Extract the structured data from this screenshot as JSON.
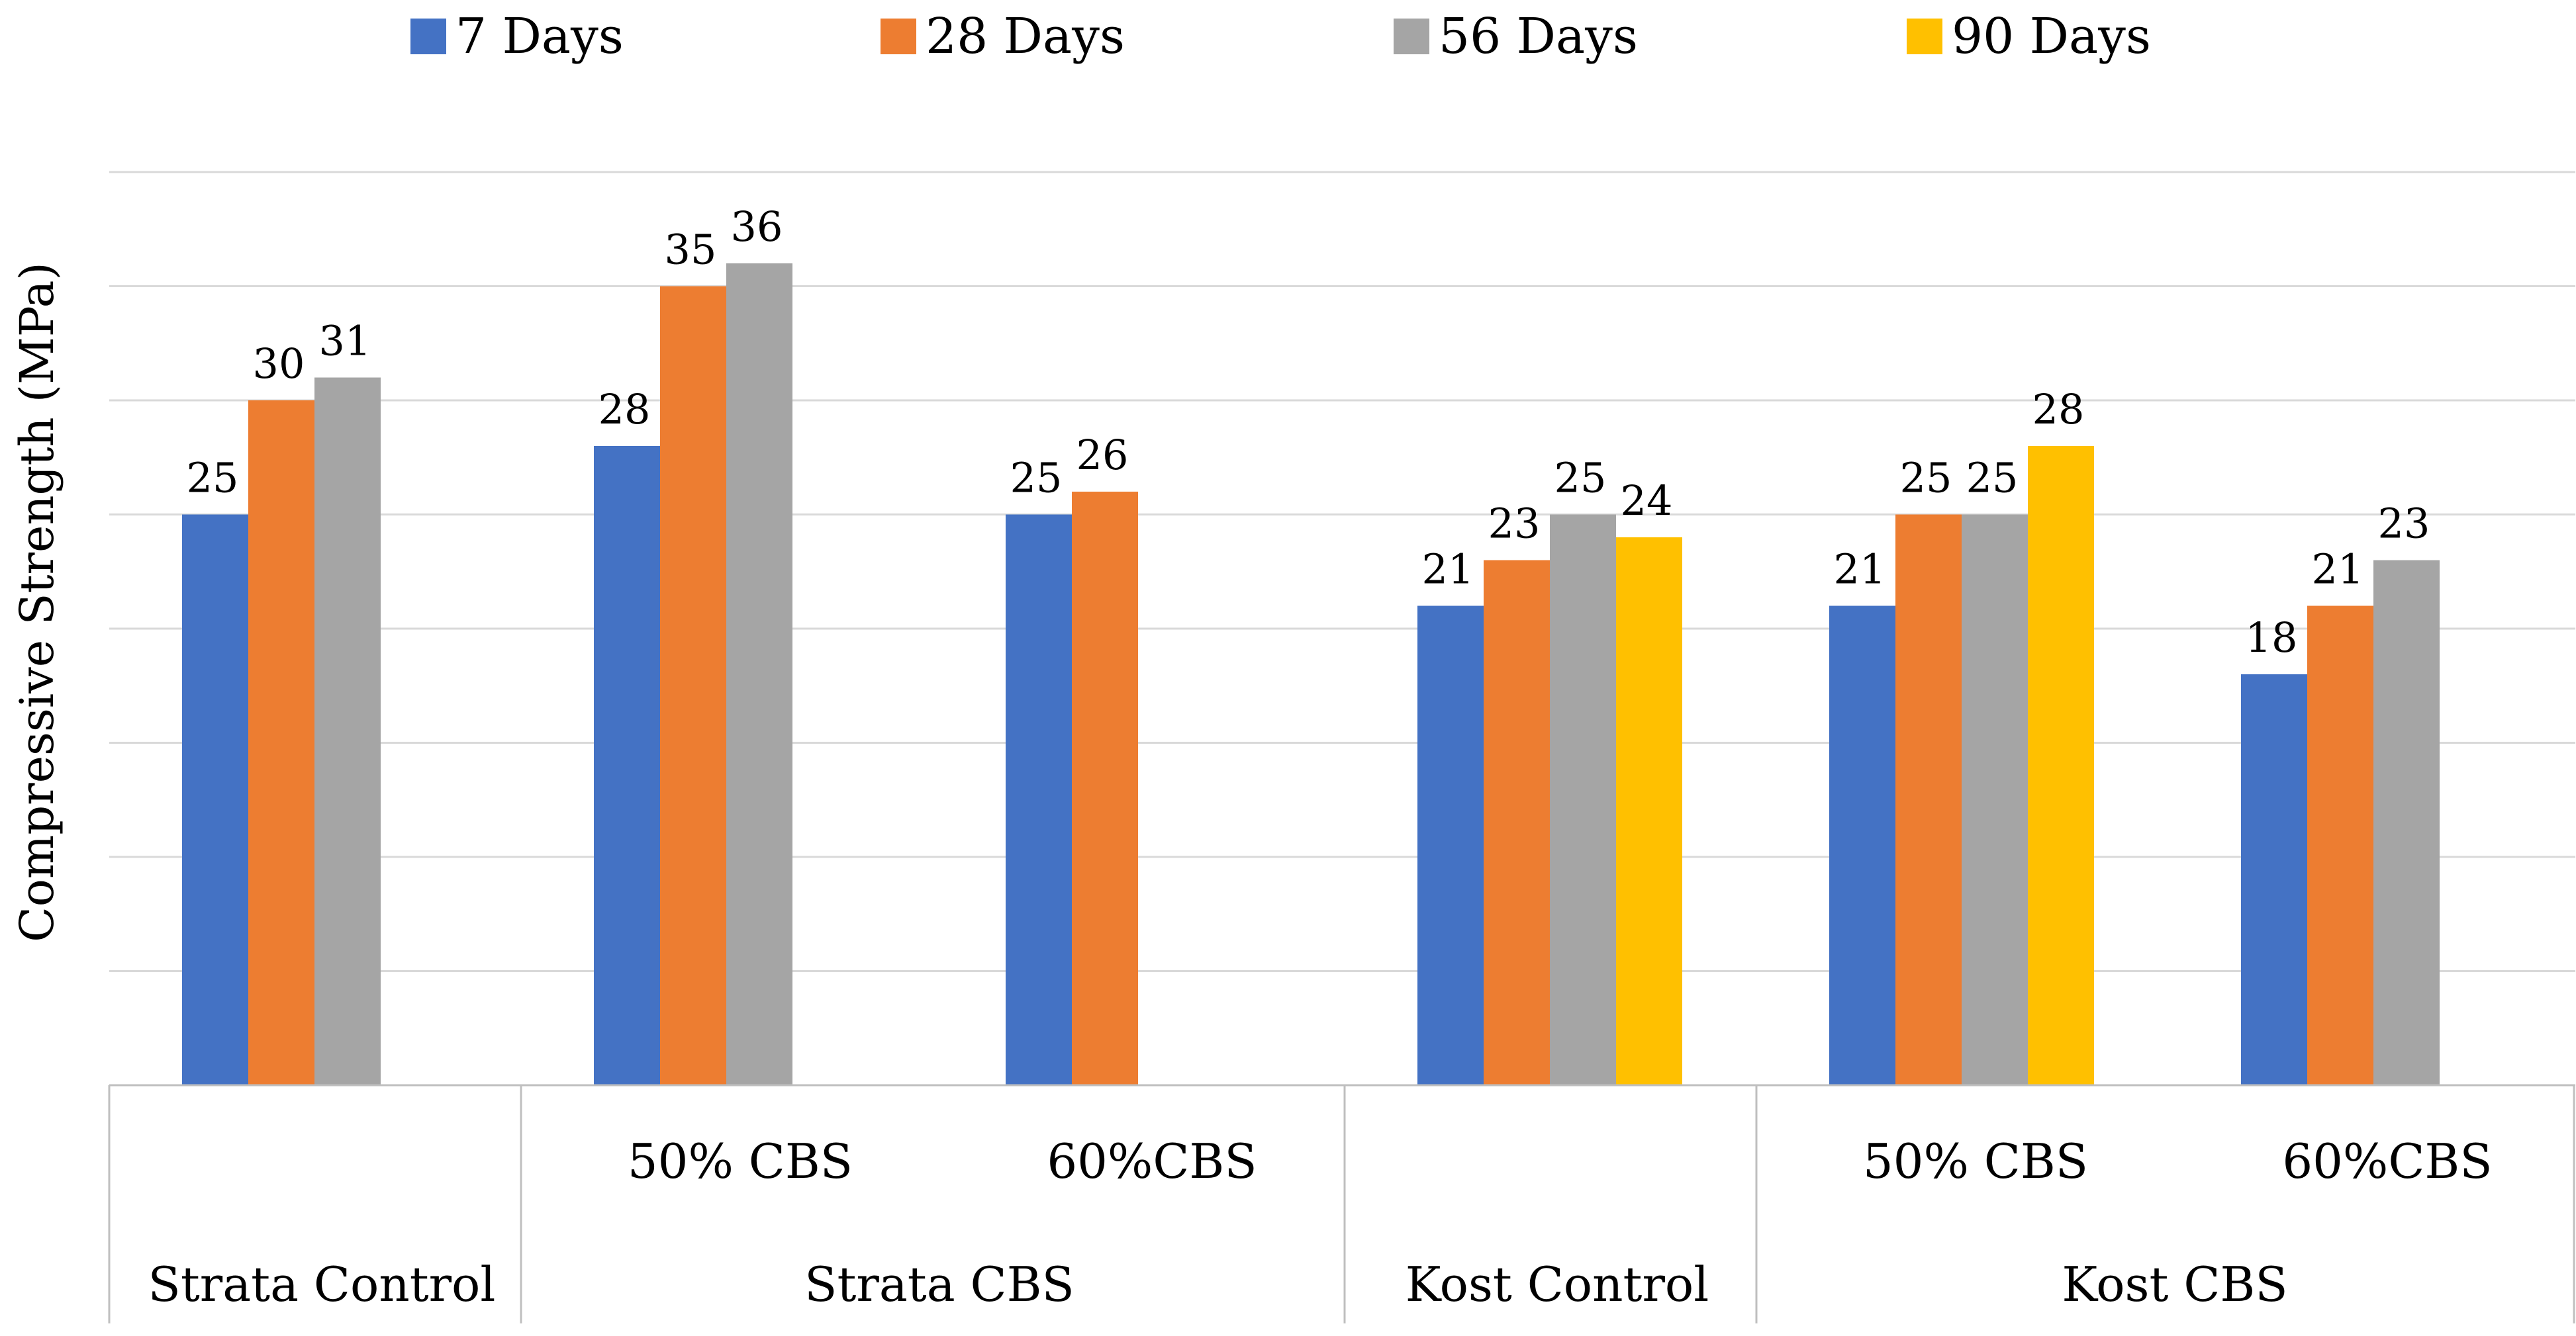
{
  "chart_data": {
    "type": "bar",
    "title": "",
    "ylabel": "Compressive Strength (MPa)",
    "xlabel": "",
    "ylim": [
      0,
      40
    ],
    "grid": true,
    "legend_position": "top",
    "series": [
      {
        "name": "7 Days",
        "color": "#4472C4"
      },
      {
        "name": "28 Days",
        "color": "#ED7D31"
      },
      {
        "name": "56 Days",
        "color": "#A5A5A5"
      },
      {
        "name": "90 Days",
        "color": "#FFC000"
      }
    ],
    "groups": [
      {
        "name": "Strata Control",
        "subgroups": [
          {
            "name": "",
            "values": [
              25,
              30,
              31,
              null
            ]
          }
        ]
      },
      {
        "name": "Strata CBS",
        "subgroups": [
          {
            "name": "50% CBS",
            "values": [
              28,
              35,
              36,
              null
            ]
          },
          {
            "name": "60%CBS",
            "values": [
              25,
              26,
              null,
              null
            ]
          }
        ]
      },
      {
        "name": "Kost Control",
        "subgroups": [
          {
            "name": "",
            "values": [
              21,
              23,
              25,
              24
            ]
          }
        ]
      },
      {
        "name": "Kost CBS",
        "subgroups": [
          {
            "name": "50% CBS",
            "values": [
              21,
              25,
              25,
              28
            ]
          },
          {
            "name": "60%CBS",
            "values": [
              18,
              21,
              23,
              null
            ]
          }
        ]
      }
    ]
  }
}
